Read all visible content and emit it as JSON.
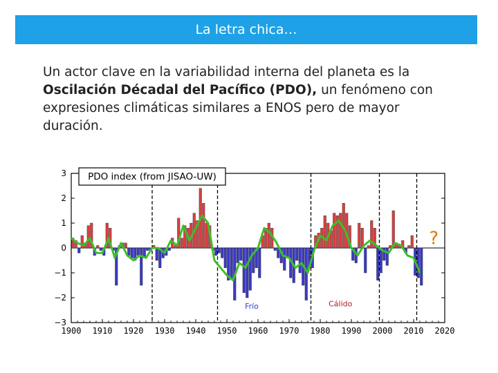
{
  "slide": {
    "title": "La letra chica…",
    "paragraph": {
      "intro": "Un actor clave en la variabilidad interna del planeta es la ",
      "bold": "Oscilación Décadal del Pacífico (PDO),",
      "rest": " un fenómeno con expresiones climáticas similares a ENOS pero de mayor duración."
    }
  },
  "chart_data": {
    "type": "bar",
    "title": "PDO index (from JISAO-UW)",
    "xlabel": "",
    "ylabel": "",
    "xlim": [
      1900,
      2020
    ],
    "ylim": [
      -3,
      3
    ],
    "x_ticks": [
      1900,
      1910,
      1920,
      1930,
      1940,
      1950,
      1960,
      1970,
      1980,
      1990,
      2000,
      2010,
      2020
    ],
    "y_ticks": [
      3,
      2,
      1,
      0,
      -1,
      -2,
      -3
    ],
    "y_tick_labels": [
      "3",
      "2",
      "1",
      "0",
      "−1",
      "−2",
      "−3"
    ],
    "positive_color": "#d94040",
    "negative_color": "#3a3ac8",
    "smooth_color": "#3cbf2a",
    "annual_series": {
      "x": [
        1900,
        1901,
        1902,
        1903,
        1904,
        1905,
        1906,
        1907,
        1908,
        1909,
        1910,
        1911,
        1912,
        1913,
        1914,
        1915,
        1916,
        1917,
        1918,
        1919,
        1920,
        1921,
        1922,
        1923,
        1924,
        1925,
        1926,
        1927,
        1928,
        1929,
        1930,
        1931,
        1932,
        1933,
        1934,
        1935,
        1936,
        1937,
        1938,
        1939,
        1940,
        1941,
        1942,
        1943,
        1944,
        1945,
        1946,
        1947,
        1948,
        1949,
        1950,
        1951,
        1952,
        1953,
        1954,
        1955,
        1956,
        1957,
        1958,
        1959,
        1960,
        1961,
        1962,
        1963,
        1964,
        1965,
        1966,
        1967,
        1968,
        1969,
        1970,
        1971,
        1972,
        1973,
        1974,
        1975,
        1976,
        1977,
        1978,
        1979,
        1980,
        1981,
        1982,
        1983,
        1984,
        1985,
        1986,
        1987,
        1988,
        1989,
        1990,
        1991,
        1992,
        1993,
        1994,
        1995,
        1996,
        1997,
        1998,
        1999,
        2000,
        2001,
        2002,
        2003,
        2004,
        2005,
        2006,
        2007,
        2008,
        2009,
        2010,
        2011,
        2012
      ],
      "values": [
        0.4,
        0.3,
        -0.2,
        0.5,
        0.2,
        0.9,
        1.0,
        -0.3,
        0.1,
        -0.1,
        -0.3,
        1.0,
        0.8,
        -0.1,
        -1.5,
        0.1,
        0.2,
        0.2,
        -0.3,
        -0.4,
        -0.5,
        -0.3,
        -1.5,
        -0.4,
        -0.1,
        -0.1,
        0.1,
        -0.5,
        -0.8,
        -0.4,
        -0.3,
        -0.1,
        0.4,
        0.1,
        1.2,
        0.4,
        0.9,
        0.8,
        1.0,
        1.4,
        1.1,
        2.4,
        1.8,
        1.0,
        0.9,
        -0.1,
        -0.3,
        -0.2,
        -0.4,
        -0.8,
        -1.3,
        -1.2,
        -2.1,
        -0.6,
        -0.5,
        -1.8,
        -2.0,
        -1.7,
        -1.0,
        -0.8,
        -1.2,
        0.5,
        0.8,
        1.0,
        0.8,
        -0.1,
        -0.4,
        -0.6,
        -0.9,
        -0.4,
        -1.2,
        -1.4,
        -0.5,
        -1.0,
        -1.5,
        -2.1,
        -0.8,
        -0.8,
        0.5,
        0.6,
        0.8,
        1.3,
        1.0,
        0.7,
        1.4,
        1.3,
        1.4,
        1.8,
        1.4,
        0.9,
        -0.5,
        -0.6,
        1.0,
        0.8,
        -1.0,
        0.1,
        1.1,
        0.8,
        -1.3,
        -1.0,
        -0.5,
        -0.7,
        0.1,
        1.5,
        0.2,
        0.1,
        0.3,
        -0.2,
        0.1,
        0.5,
        -1.1,
        -1.2,
        -1.5
      ],
      "colors_by_sign": true
    },
    "smoothed_series": {
      "x": [
        1900,
        1902,
        1904,
        1906,
        1908,
        1910,
        1912,
        1914,
        1916,
        1918,
        1920,
        1922,
        1924,
        1926,
        1928,
        1930,
        1932,
        1934,
        1936,
        1938,
        1940,
        1942,
        1944,
        1946,
        1948,
        1950,
        1952,
        1954,
        1956,
        1958,
        1960,
        1962,
        1964,
        1966,
        1968,
        1970,
        1972,
        1974,
        1976,
        1978,
        1980,
        1982,
        1984,
        1986,
        1988,
        1990,
        1992,
        1994,
        1996,
        1998,
        2000,
        2002,
        2004,
        2006,
        2008,
        2010,
        2012
      ],
      "values": [
        0.4,
        0.2,
        0.1,
        0.4,
        -0.2,
        -0.2,
        0.4,
        -0.4,
        0.2,
        -0.3,
        -0.5,
        -0.3,
        -0.4,
        0.0,
        0.0,
        -0.2,
        0.3,
        0.1,
        0.9,
        0.3,
        0.8,
        1.3,
        1.0,
        -0.5,
        -0.8,
        -1.1,
        -1.3,
        -0.6,
        -0.8,
        -0.3,
        0.0,
        0.8,
        0.6,
        0.2,
        -0.3,
        -0.4,
        -0.8,
        -0.6,
        -1.0,
        -0.1,
        0.5,
        0.3,
        0.9,
        1.1,
        0.7,
        0.0,
        -0.3,
        0.1,
        0.3,
        0.1,
        -0.1,
        -0.2,
        0.2,
        0.1,
        -0.3,
        -0.4,
        -1.0
      ]
    },
    "reference_lines": [
      1926,
      1947,
      1977,
      1999,
      2011
    ],
    "reference_line_style": "dashed",
    "annotations": [
      {
        "text": "Frío",
        "x": 1958,
        "y": -2.45,
        "color": "#2c3ecc"
      },
      {
        "text": "Cálido",
        "x": 1986.5,
        "y": -2.35,
        "color": "#b31b1b"
      },
      {
        "text": "?",
        "x": 2016.5,
        "y": 0.15,
        "color": "#e4760e"
      }
    ]
  }
}
